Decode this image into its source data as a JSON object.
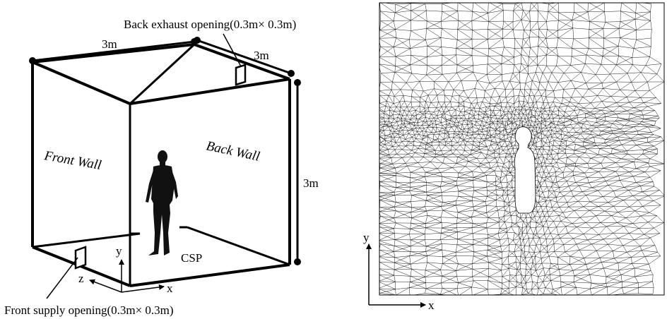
{
  "diagram": {
    "labels": {
      "width": "3m",
      "depth": "3m",
      "height": "3m",
      "exhaust": "Back exhaust opening(0.3m× 0.3m)",
      "supply": "Front supply opening(0.3m× 0.3m)",
      "front_wall": "Front Wall",
      "back_wall": "Back Wall",
      "manikin": "CSP"
    },
    "axes3d": {
      "x": "x",
      "y": "y",
      "z": "z"
    },
    "mesh_axes": {
      "x": "x",
      "y": "y"
    },
    "icons": [
      "human-manikin-icon",
      "manikin-silhouette-icon"
    ],
    "colors": {
      "line": "#000000",
      "background": "#ffffff"
    }
  }
}
